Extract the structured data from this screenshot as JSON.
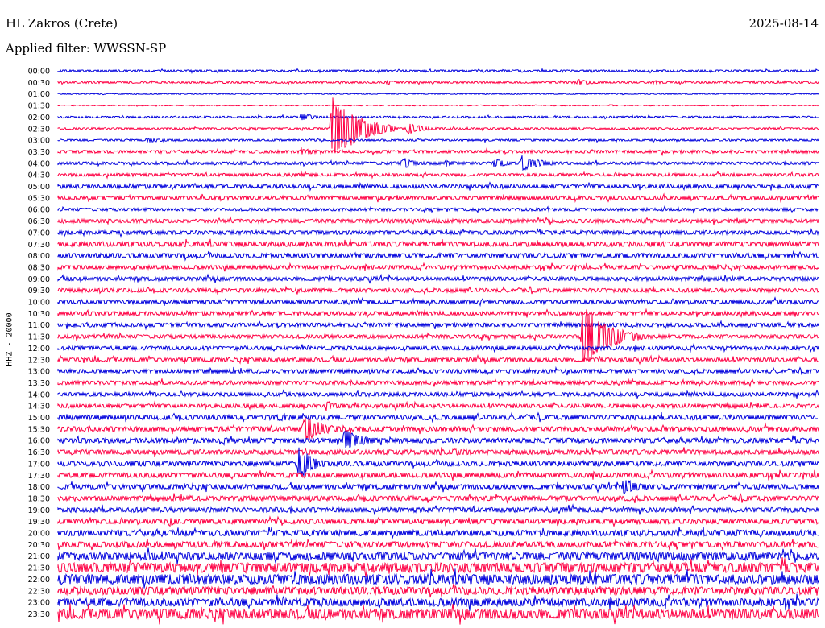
{
  "header": {
    "station": "HL Zakros (Crete)",
    "date": "2025-08-14",
    "filter_label": "Applied filter: WWSSN-SP",
    "channel_label": "HHZ - 20000"
  },
  "colors": {
    "even": "#0000dd",
    "odd": "#ff0044"
  },
  "chart_data": {
    "type": "line",
    "title": "HL Zakros (Crete)",
    "subtitle": "Applied filter: WWSSN-SP",
    "ylabel": "HHZ - 20000",
    "row_labels": [
      "00:00",
      "00:30",
      "01:00",
      "01:30",
      "02:00",
      "02:30",
      "03:00",
      "03:30",
      "04:00",
      "04:30",
      "05:00",
      "05:30",
      "06:00",
      "06:30",
      "07:00",
      "07:30",
      "08:00",
      "08:30",
      "09:00",
      "09:30",
      "10:00",
      "10:30",
      "11:00",
      "11:30",
      "12:00",
      "12:30",
      "13:00",
      "13:30",
      "14:00",
      "14:30",
      "15:00",
      "15:30",
      "16:00",
      "16:30",
      "17:00",
      "17:30",
      "18:00",
      "18:30",
      "19:00",
      "19:30",
      "20:00",
      "20:30",
      "21:00",
      "21:30",
      "22:00",
      "22:30",
      "23:00",
      "23:30"
    ],
    "row_minutes": 30,
    "noise_levels": [
      1,
      1,
      0.5,
      0.5,
      1,
      1,
      1,
      1.5,
      1.5,
      1.5,
      2,
      2,
      1.5,
      2,
      2,
      2.5,
      2.5,
      2,
      2,
      2,
      2,
      2,
      2,
      2,
      2,
      2,
      2,
      2,
      2,
      2,
      2.5,
      2.5,
      2.5,
      2.5,
      2.5,
      2.5,
      2.5,
      2.5,
      2.5,
      2.5,
      3,
      3,
      4,
      5,
      5,
      4,
      4,
      5
    ],
    "events": [
      {
        "row": 1,
        "minute": 20.5,
        "amp": 4,
        "dur": 1.5
      },
      {
        "row": 1,
        "minute": 13,
        "amp": 3,
        "dur": 1
      },
      {
        "row": 1,
        "minute": 23.5,
        "amp": 3,
        "dur": 1
      },
      {
        "row": 4,
        "minute": 9.6,
        "amp": 5,
        "dur": 1.5
      },
      {
        "row": 5,
        "minute": 10.8,
        "amp": 45,
        "dur": 2.5
      },
      {
        "row": 5,
        "minute": 13.8,
        "amp": 8,
        "dur": 1.5
      },
      {
        "row": 6,
        "minute": 3.5,
        "amp": 3,
        "dur": 2
      },
      {
        "row": 7,
        "minute": 9.6,
        "amp": 5,
        "dur": 1.5
      },
      {
        "row": 8,
        "minute": 18.3,
        "amp": 10,
        "dur": 2
      },
      {
        "row": 8,
        "minute": 17.2,
        "amp": 6,
        "dur": 1.5
      },
      {
        "row": 8,
        "minute": 13.6,
        "amp": 8,
        "dur": 1
      },
      {
        "row": 8,
        "minute": 15.3,
        "amp": 5,
        "dur": 1
      },
      {
        "row": 23,
        "minute": 20.7,
        "amp": 40,
        "dur": 2.5
      },
      {
        "row": 29,
        "minute": 10.6,
        "amp": 8,
        "dur": 1
      },
      {
        "row": 30,
        "minute": 8.7,
        "amp": 5,
        "dur": 2
      },
      {
        "row": 31,
        "minute": 9.7,
        "amp": 18,
        "dur": 2
      },
      {
        "row": 32,
        "minute": 11.3,
        "amp": 14,
        "dur": 2
      },
      {
        "row": 32,
        "minute": 6.5,
        "amp": 6,
        "dur": 1
      },
      {
        "row": 33,
        "minute": 15.6,
        "amp": 5,
        "dur": 1.5
      },
      {
        "row": 34,
        "minute": 9.5,
        "amp": 22,
        "dur": 1.5
      },
      {
        "row": 36,
        "minute": 22.3,
        "amp": 10,
        "dur": 2
      },
      {
        "row": 39,
        "minute": 4.4,
        "amp": 6,
        "dur": 1
      },
      {
        "row": 40,
        "minute": 26.8,
        "amp": 5,
        "dur": 1.5
      }
    ]
  }
}
